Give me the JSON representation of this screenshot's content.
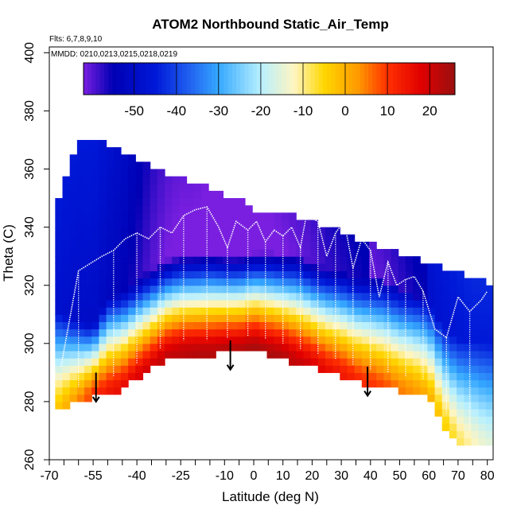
{
  "chart_data": {
    "type": "heatmap",
    "title": "ATOM2 Northbound Static_Air_Temp",
    "notes": {
      "flights": "Flts: 6,7,8,9,10",
      "dates": "MMDD: 0210,0213,0215,0218,0219"
    },
    "xlabel": "Latitude (deg N)",
    "ylabel": "Theta (C)",
    "xlim": [
      -70,
      82
    ],
    "ylim": [
      260,
      402
    ],
    "x_tick_labels": [
      "-70",
      "-55",
      "-40",
      "-25",
      "-10",
      "0",
      "10",
      "20",
      "30",
      "40",
      "50",
      "60",
      "70",
      "80"
    ],
    "x_tick_values": [
      -70,
      -55,
      -40,
      -25,
      -10,
      0,
      10,
      20,
      30,
      40,
      50,
      60,
      70,
      80
    ],
    "x_minor_ticks": [
      -65,
      -60,
      -50,
      -45,
      -35,
      -30,
      -20,
      -15,
      -5,
      5,
      15,
      25,
      35,
      45,
      55,
      65,
      75
    ],
    "y_tick_labels": [
      "260",
      "280",
      "300",
      "320",
      "340",
      "360",
      "380",
      "400"
    ],
    "y_tick_values": [
      260,
      280,
      300,
      320,
      340,
      360,
      380,
      400
    ],
    "colorbar": {
      "min": -62,
      "max": 26,
      "tick_labels": [
        "-50",
        "-40",
        "-30",
        "-20",
        "-10",
        "0",
        "10",
        "20"
      ],
      "tick_values": [
        -50,
        -40,
        -30,
        -20,
        -10,
        0,
        10,
        20
      ],
      "colors": [
        "#7a1fe0",
        "#0000b4",
        "#0018d8",
        "#2060f0",
        "#35a8ff",
        "#b8f0ff",
        "#fff5c0",
        "#ffd700",
        "#ff9a00",
        "#ff3000",
        "#e00000",
        "#9a1010"
      ],
      "color_stops": [
        -62,
        -55,
        -45,
        -37,
        -30,
        -20,
        -12,
        -5,
        3,
        10,
        18,
        26
      ]
    },
    "temperature_field": {
      "description": "Static air temperature (C) gridded vs latitude and potential temperature",
      "lat": [
        -68,
        -60,
        -55,
        -50,
        -45,
        -40,
        -35,
        -30,
        -25,
        -20,
        -15,
        -10,
        -5,
        0,
        5,
        10,
        15,
        20,
        25,
        30,
        35,
        40,
        45,
        50,
        55,
        60,
        65,
        70,
        75,
        80
      ],
      "theta_bottom": [
        278,
        281,
        283,
        284,
        285,
        289,
        292,
        296,
        297,
        297,
        297,
        298,
        298,
        299,
        297,
        296,
        294,
        293,
        291,
        290,
        288,
        287,
        286,
        285,
        284,
        283,
        273,
        267,
        266,
        265
      ],
      "theta_top": [
        346,
        370,
        368,
        368,
        364,
        362,
        360,
        357,
        356,
        354,
        352,
        350,
        348,
        345,
        344,
        344,
        342,
        341,
        339,
        337,
        335,
        333,
        332,
        330,
        328,
        326,
        325,
        323,
        322,
        320
      ],
      "tropopause_theta": [
        312,
        308,
        306,
        316,
        318,
        322,
        326,
        329,
        331,
        331,
        332,
        331,
        331,
        332,
        332,
        331,
        331,
        328,
        326,
        325,
        323,
        322,
        321,
        318,
        316,
        314,
        306,
        302,
        301,
        300
      ],
      "surface_temp": [
        -4,
        4,
        10,
        14,
        16,
        18,
        20,
        21,
        22,
        23,
        23,
        23,
        23,
        24,
        24,
        23,
        21,
        19,
        16,
        14,
        12,
        10,
        8,
        5,
        3,
        0,
        -4,
        -8,
        -12,
        -15
      ],
      "tropopause_temp": [
        -48,
        -50,
        -50,
        -52,
        -54,
        -57,
        -60,
        -62,
        -63,
        -63,
        -64,
        -64,
        -64,
        -64,
        -63,
        -62,
        -61,
        -60,
        -58,
        -57,
        -56,
        -55,
        -54,
        -52,
        -50,
        -49,
        -47,
        -46,
        -45,
        -45
      ]
    },
    "profile_lines": {
      "description": "White dotted vertical profiles (theta vs latitude) along flight track",
      "track_lat": [
        -66,
        -60,
        -52,
        -48,
        -44,
        -40,
        -36,
        -32,
        -28,
        -24,
        -20,
        -16,
        -12,
        -9,
        -6,
        -2,
        1,
        4,
        7,
        10,
        13,
        16,
        18,
        22,
        25,
        28,
        31,
        34,
        37,
        40,
        43,
        46,
        49,
        52,
        55,
        58,
        62,
        66,
        70,
        74,
        78,
        80
      ],
      "track_theta": [
        292,
        325,
        330,
        332,
        336,
        338,
        336,
        340,
        338,
        344,
        346,
        347,
        340,
        333,
        342,
        339,
        342,
        335,
        339,
        337,
        340,
        333,
        344,
        342,
        330,
        338,
        342,
        326,
        336,
        332,
        316,
        328,
        320,
        322,
        323,
        318,
        305,
        302,
        316,
        311,
        315,
        318
      ]
    },
    "arrows": {
      "description": "Downward arrows marking profile locations",
      "lat": [
        -54,
        -8,
        39
      ],
      "theta": [
        290,
        301,
        292
      ]
    }
  }
}
